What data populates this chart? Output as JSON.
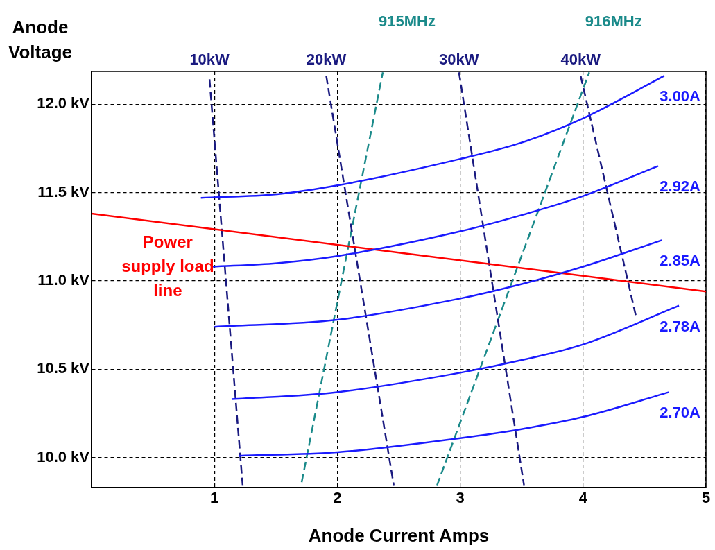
{
  "chart_data": {
    "type": "line",
    "xlabel": "Anode Current Amps",
    "ylabel": "Anode Voltage",
    "xlim": [
      0,
      5
    ],
    "xticks": [
      1,
      2,
      3,
      4,
      5
    ],
    "ylim": [
      9.83,
      12.185
    ],
    "yticks": [
      {
        "value": 10,
        "label": "10.0 kV"
      },
      {
        "value": 10.5,
        "label": "10.5 kV"
      },
      {
        "value": 11,
        "label": "11.0 kV"
      },
      {
        "value": 11.5,
        "label": "11.5 kV"
      },
      {
        "value": 12,
        "label": "12.0 kV"
      }
    ],
    "grid": true,
    "legend": false,
    "marker": "none",
    "series": [
      {
        "name": "3.00A",
        "color": "#1a1aff",
        "line_style": "solid",
        "x": [
          0.89,
          1.51,
          2.0,
          3.0,
          3.49,
          4.0,
          4.66
        ],
        "values": [
          11.47,
          11.49,
          11.54,
          11.69,
          11.78,
          11.92,
          12.16
        ]
      },
      {
        "name": "2.92A",
        "color": "#1a1aff",
        "line_style": "solid",
        "x": [
          0.98,
          1.51,
          2.0,
          3.0,
          3.49,
          4.0,
          4.61
        ],
        "values": [
          11.08,
          11.1,
          11.14,
          11.28,
          11.37,
          11.48,
          11.65
        ]
      },
      {
        "name": "2.85A",
        "color": "#1a1aff",
        "line_style": "solid",
        "x": [
          1.0,
          2.0,
          3.0,
          3.49,
          4.0,
          4.64
        ],
        "values": [
          10.74,
          10.78,
          10.9,
          10.98,
          11.08,
          11.23
        ]
      },
      {
        "name": "2.78A",
        "color": "#1a1aff",
        "line_style": "solid",
        "x": [
          1.14,
          2.0,
          3.0,
          3.49,
          4.0,
          4.78
        ],
        "values": [
          10.33,
          10.37,
          10.48,
          10.55,
          10.64,
          10.86
        ]
      },
      {
        "name": "2.70A",
        "color": "#1a1aff",
        "line_style": "solid",
        "x": [
          1.2,
          2.0,
          3.0,
          3.49,
          4.0,
          4.7
        ],
        "values": [
          10.01,
          10.03,
          10.11,
          10.16,
          10.23,
          10.37
        ]
      },
      {
        "name": "Power supply load line",
        "color": "#ff0000",
        "line_style": "solid",
        "x": [
          0,
          5
        ],
        "values": [
          11.38,
          10.94
        ]
      },
      {
        "name": "10kW",
        "color": "#1a1a80",
        "line_style": "dashed",
        "x": [
          0.96,
          1.23
        ],
        "values": [
          12.14,
          9.84
        ]
      },
      {
        "name": "20kW",
        "color": "#1a1a80",
        "line_style": "dashed",
        "x": [
          1.91,
          2.46
        ],
        "values": [
          12.16,
          9.84
        ]
      },
      {
        "name": "30kW",
        "color": "#1a1a80",
        "line_style": "dashed",
        "x": [
          2.99,
          3.52
        ],
        "values": [
          12.18,
          9.84
        ]
      },
      {
        "name": "40kW",
        "color": "#1a1a80",
        "line_style": "dashed",
        "x": [
          3.98,
          4.43
        ],
        "values": [
          12.16,
          10.8
        ]
      },
      {
        "name": "915MHz",
        "color": "#1a8a8a",
        "line_style": "dashed",
        "x": [
          1.71,
          2.37
        ],
        "values": [
          9.86,
          12.18
        ]
      },
      {
        "name": "916MHz",
        "color": "#1a8a8a",
        "line_style": "dashed",
        "x": [
          2.81,
          4.05
        ],
        "values": [
          9.84,
          12.18
        ]
      }
    ]
  }
}
